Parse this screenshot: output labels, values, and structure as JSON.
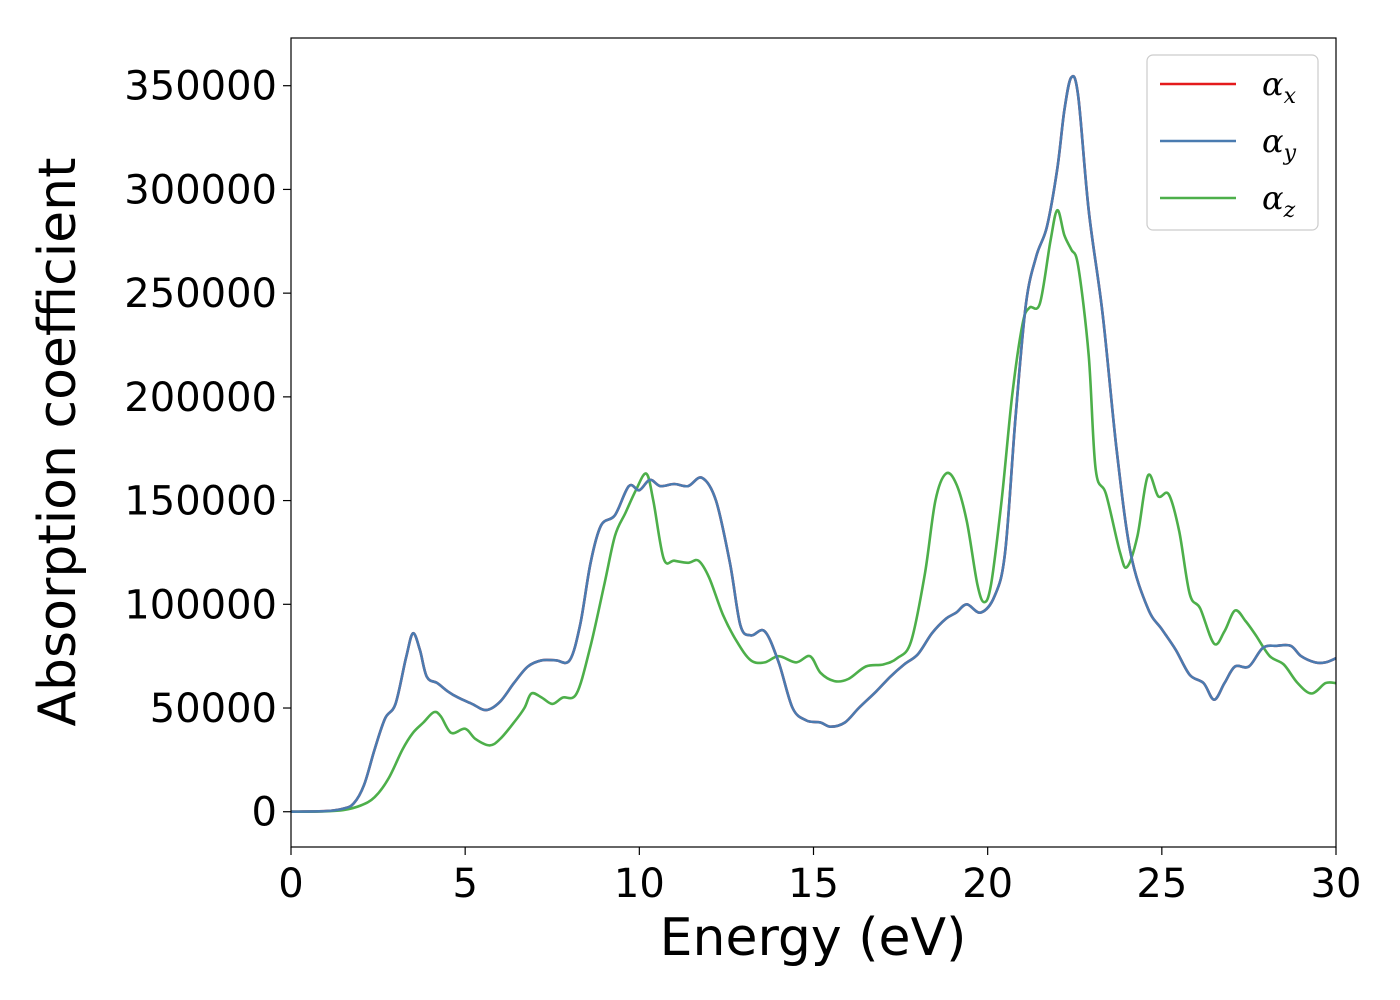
{
  "chart_data": {
    "type": "line",
    "xlabel": "Energy (eV)",
    "ylabel": "Absorption coefficient",
    "xlim": [
      0,
      30
    ],
    "ylim": [
      -17000,
      373000
    ],
    "xticks": [
      0,
      5,
      10,
      15,
      20,
      25,
      30
    ],
    "xtick_labels": [
      "0",
      "5",
      "10",
      "15",
      "20",
      "25",
      "30"
    ],
    "yticks": [
      0,
      50000,
      100000,
      150000,
      200000,
      250000,
      300000,
      350000
    ],
    "ytick_labels": [
      "0",
      "50000",
      "100000",
      "150000",
      "200000",
      "250000",
      "300000",
      "350000"
    ],
    "grid": false,
    "legend_position": "top-right",
    "series": [
      {
        "name": "α",
        "subscript": "x",
        "color": "#e41a1c",
        "points": [
          [
            0,
            0
          ],
          [
            1,
            300
          ],
          [
            1.5,
            1500
          ],
          [
            1.8,
            4000
          ],
          [
            2.1,
            13000
          ],
          [
            2.4,
            30000
          ],
          [
            2.7,
            45000
          ],
          [
            3.0,
            52000
          ],
          [
            3.3,
            74000
          ],
          [
            3.5,
            86000
          ],
          [
            3.7,
            78000
          ],
          [
            3.9,
            65000
          ],
          [
            4.2,
            62000
          ],
          [
            4.5,
            58000
          ],
          [
            4.8,
            55000
          ],
          [
            5.2,
            52000
          ],
          [
            5.6,
            49000
          ],
          [
            6.0,
            53000
          ],
          [
            6.4,
            62000
          ],
          [
            6.8,
            70000
          ],
          [
            7.2,
            73000
          ],
          [
            7.6,
            73000
          ],
          [
            8.0,
            73000
          ],
          [
            8.3,
            90000
          ],
          [
            8.6,
            120000
          ],
          [
            8.9,
            138000
          ],
          [
            9.3,
            143000
          ],
          [
            9.7,
            157000
          ],
          [
            10.0,
            155000
          ],
          [
            10.3,
            160000
          ],
          [
            10.6,
            157000
          ],
          [
            11.0,
            158000
          ],
          [
            11.4,
            157000
          ],
          [
            11.8,
            161000
          ],
          [
            12.2,
            150000
          ],
          [
            12.6,
            120000
          ],
          [
            12.9,
            90000
          ],
          [
            13.2,
            85000
          ],
          [
            13.6,
            87000
          ],
          [
            14.0,
            72000
          ],
          [
            14.4,
            50000
          ],
          [
            14.8,
            44000
          ],
          [
            15.2,
            43000
          ],
          [
            15.5,
            41000
          ],
          [
            15.9,
            43000
          ],
          [
            16.3,
            50000
          ],
          [
            16.8,
            58000
          ],
          [
            17.2,
            65000
          ],
          [
            17.6,
            71000
          ],
          [
            18.0,
            76000
          ],
          [
            18.4,
            86000
          ],
          [
            18.8,
            93000
          ],
          [
            19.1,
            96000
          ],
          [
            19.4,
            100000
          ],
          [
            19.8,
            96000
          ],
          [
            20.2,
            104000
          ],
          [
            20.5,
            125000
          ],
          [
            20.8,
            190000
          ],
          [
            21.1,
            245000
          ],
          [
            21.4,
            268000
          ],
          [
            21.7,
            282000
          ],
          [
            22.0,
            310000
          ],
          [
            22.2,
            338000
          ],
          [
            22.4,
            354000
          ],
          [
            22.6,
            345000
          ],
          [
            22.9,
            290000
          ],
          [
            23.3,
            240000
          ],
          [
            23.7,
            175000
          ],
          [
            24.1,
            125000
          ],
          [
            24.6,
            98000
          ],
          [
            25.0,
            88000
          ],
          [
            25.4,
            78000
          ],
          [
            25.8,
            66000
          ],
          [
            26.2,
            62000
          ],
          [
            26.5,
            54000
          ],
          [
            26.8,
            62000
          ],
          [
            27.1,
            70000
          ],
          [
            27.5,
            70000
          ],
          [
            27.9,
            79000
          ],
          [
            28.3,
            80000
          ],
          [
            28.7,
            80000
          ],
          [
            29.0,
            75000
          ],
          [
            29.4,
            72000
          ],
          [
            29.7,
            72000
          ],
          [
            30,
            74000
          ]
        ]
      },
      {
        "name": "α",
        "subscript": "y",
        "color": "#4a7bb0",
        "points": [
          [
            0,
            0
          ],
          [
            1,
            300
          ],
          [
            1.5,
            1500
          ],
          [
            1.8,
            4000
          ],
          [
            2.1,
            13000
          ],
          [
            2.4,
            30000
          ],
          [
            2.7,
            45000
          ],
          [
            3.0,
            52000
          ],
          [
            3.3,
            74000
          ],
          [
            3.5,
            86000
          ],
          [
            3.7,
            78000
          ],
          [
            3.9,
            65000
          ],
          [
            4.2,
            62000
          ],
          [
            4.5,
            58000
          ],
          [
            4.8,
            55000
          ],
          [
            5.2,
            52000
          ],
          [
            5.6,
            49000
          ],
          [
            6.0,
            53000
          ],
          [
            6.4,
            62000
          ],
          [
            6.8,
            70000
          ],
          [
            7.2,
            73000
          ],
          [
            7.6,
            73000
          ],
          [
            8.0,
            73000
          ],
          [
            8.3,
            90000
          ],
          [
            8.6,
            120000
          ],
          [
            8.9,
            138000
          ],
          [
            9.3,
            143000
          ],
          [
            9.7,
            157000
          ],
          [
            10.0,
            155000
          ],
          [
            10.3,
            160000
          ],
          [
            10.6,
            157000
          ],
          [
            11.0,
            158000
          ],
          [
            11.4,
            157000
          ],
          [
            11.8,
            161000
          ],
          [
            12.2,
            150000
          ],
          [
            12.6,
            120000
          ],
          [
            12.9,
            90000
          ],
          [
            13.2,
            85000
          ],
          [
            13.6,
            87000
          ],
          [
            14.0,
            72000
          ],
          [
            14.4,
            50000
          ],
          [
            14.8,
            44000
          ],
          [
            15.2,
            43000
          ],
          [
            15.5,
            41000
          ],
          [
            15.9,
            43000
          ],
          [
            16.3,
            50000
          ],
          [
            16.8,
            58000
          ],
          [
            17.2,
            65000
          ],
          [
            17.6,
            71000
          ],
          [
            18.0,
            76000
          ],
          [
            18.4,
            86000
          ],
          [
            18.8,
            93000
          ],
          [
            19.1,
            96000
          ],
          [
            19.4,
            100000
          ],
          [
            19.8,
            96000
          ],
          [
            20.2,
            104000
          ],
          [
            20.5,
            125000
          ],
          [
            20.8,
            190000
          ],
          [
            21.1,
            245000
          ],
          [
            21.4,
            268000
          ],
          [
            21.7,
            282000
          ],
          [
            22.0,
            310000
          ],
          [
            22.2,
            338000
          ],
          [
            22.4,
            354000
          ],
          [
            22.6,
            345000
          ],
          [
            22.9,
            290000
          ],
          [
            23.3,
            240000
          ],
          [
            23.7,
            175000
          ],
          [
            24.1,
            125000
          ],
          [
            24.6,
            98000
          ],
          [
            25.0,
            88000
          ],
          [
            25.4,
            78000
          ],
          [
            25.8,
            66000
          ],
          [
            26.2,
            62000
          ],
          [
            26.5,
            54000
          ],
          [
            26.8,
            62000
          ],
          [
            27.1,
            70000
          ],
          [
            27.5,
            70000
          ],
          [
            27.9,
            79000
          ],
          [
            28.3,
            80000
          ],
          [
            28.7,
            80000
          ],
          [
            29.0,
            75000
          ],
          [
            29.4,
            72000
          ],
          [
            29.7,
            72000
          ],
          [
            30,
            74000
          ]
        ]
      },
      {
        "name": "α",
        "subscript": "z",
        "color": "#4daf4a",
        "points": [
          [
            0,
            0
          ],
          [
            1,
            200
          ],
          [
            1.5,
            800
          ],
          [
            2.0,
            3000
          ],
          [
            2.4,
            7000
          ],
          [
            2.8,
            16000
          ],
          [
            3.2,
            30000
          ],
          [
            3.5,
            38000
          ],
          [
            3.8,
            43000
          ],
          [
            4.1,
            48000
          ],
          [
            4.3,
            46000
          ],
          [
            4.6,
            38000
          ],
          [
            5.0,
            40000
          ],
          [
            5.3,
            35000
          ],
          [
            5.7,
            32000
          ],
          [
            6.0,
            35000
          ],
          [
            6.4,
            43000
          ],
          [
            6.7,
            50000
          ],
          [
            6.9,
            57000
          ],
          [
            7.2,
            55000
          ],
          [
            7.5,
            52000
          ],
          [
            7.8,
            55000
          ],
          [
            8.2,
            57000
          ],
          [
            8.6,
            80000
          ],
          [
            9.0,
            110000
          ],
          [
            9.3,
            133000
          ],
          [
            9.6,
            144000
          ],
          [
            9.9,
            155000
          ],
          [
            10.2,
            163000
          ],
          [
            10.4,
            150000
          ],
          [
            10.7,
            122000
          ],
          [
            11.0,
            121000
          ],
          [
            11.4,
            120000
          ],
          [
            11.7,
            121000
          ],
          [
            12.0,
            113000
          ],
          [
            12.4,
            95000
          ],
          [
            12.8,
            82000
          ],
          [
            13.2,
            73000
          ],
          [
            13.6,
            72000
          ],
          [
            14.0,
            75000
          ],
          [
            14.5,
            72000
          ],
          [
            14.9,
            75000
          ],
          [
            15.2,
            67000
          ],
          [
            15.6,
            63000
          ],
          [
            16.0,
            64000
          ],
          [
            16.5,
            70000
          ],
          [
            17.0,
            71000
          ],
          [
            17.4,
            74000
          ],
          [
            17.8,
            82000
          ],
          [
            18.2,
            115000
          ],
          [
            18.5,
            150000
          ],
          [
            18.8,
            163000
          ],
          [
            19.1,
            158000
          ],
          [
            19.4,
            140000
          ],
          [
            19.7,
            110000
          ],
          [
            19.9,
            101000
          ],
          [
            20.1,
            110000
          ],
          [
            20.4,
            150000
          ],
          [
            20.7,
            200000
          ],
          [
            21.0,
            235000
          ],
          [
            21.2,
            243000
          ],
          [
            21.5,
            245000
          ],
          [
            21.8,
            275000
          ],
          [
            22.0,
            290000
          ],
          [
            22.2,
            278000
          ],
          [
            22.4,
            271000
          ],
          [
            22.6,
            263000
          ],
          [
            22.9,
            220000
          ],
          [
            23.1,
            165000
          ],
          [
            23.4,
            153000
          ],
          [
            23.8,
            125000
          ],
          [
            24.0,
            118000
          ],
          [
            24.3,
            133000
          ],
          [
            24.6,
            162000
          ],
          [
            24.9,
            152000
          ],
          [
            25.2,
            153000
          ],
          [
            25.5,
            135000
          ],
          [
            25.8,
            105000
          ],
          [
            26.1,
            98000
          ],
          [
            26.5,
            81000
          ],
          [
            26.8,
            87000
          ],
          [
            27.1,
            97000
          ],
          [
            27.4,
            92000
          ],
          [
            27.7,
            85000
          ],
          [
            28.1,
            75000
          ],
          [
            28.5,
            71000
          ],
          [
            28.9,
            62000
          ],
          [
            29.3,
            57000
          ],
          [
            29.7,
            62000
          ],
          [
            30,
            62000
          ]
        ]
      }
    ]
  }
}
